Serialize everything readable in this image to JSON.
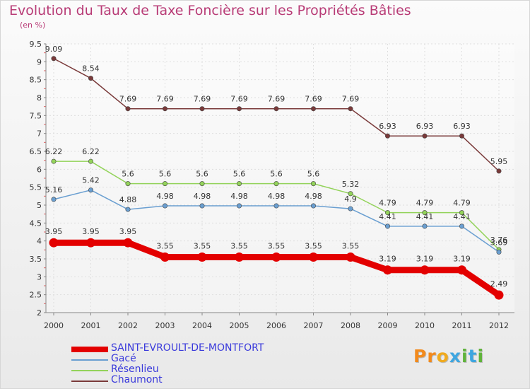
{
  "title": "Evolution du Taux de Taxe Foncière sur les Propriétés Bâties",
  "subtitle": "(en %)",
  "logo": {
    "text": "Proxiti",
    "letter_colors": [
      "#f28a1c",
      "#f28a1c",
      "#f0aa1e",
      "#3ea6e0",
      "#5fb33a",
      "#3ea6e0",
      "#5fb33a"
    ]
  },
  "chart_data": {
    "type": "line",
    "title": "Evolution du Taux de Taxe Foncière sur les Propriétés Bâties",
    "ylabel": "(en %)",
    "xlabel": "",
    "ylim": [
      2,
      9.5
    ],
    "yticks": [
      "2",
      "2.5",
      "3",
      "3.5",
      "4",
      "4.5",
      "5",
      "5.5",
      "6",
      "6.5",
      "7",
      "7.5",
      "8",
      "8.5",
      "9",
      "9.5"
    ],
    "grid": true,
    "legend_position": "bottom-left",
    "categories": [
      "2000",
      "2001",
      "2002",
      "2003",
      "2004",
      "2005",
      "2006",
      "2007",
      "2008",
      "2009",
      "2010",
      "2011",
      "2012"
    ],
    "series": [
      {
        "name": "SAINT-EVROULT-DE-MONTFORT",
        "color": "#e30000",
        "values": [
          3.95,
          3.95,
          3.95,
          3.55,
          3.55,
          3.55,
          3.55,
          3.55,
          3.55,
          3.19,
          3.19,
          3.19,
          2.49
        ],
        "labels": [
          "3.95",
          "3.95",
          "3.95",
          "3.55",
          "3.55",
          "3.55",
          "3.55",
          "3.55",
          "3.55",
          "3.19",
          "3.19",
          "3.19",
          "2.49"
        ]
      },
      {
        "name": "Gacé",
        "color": "#6a9fd1",
        "values": [
          5.16,
          5.42,
          4.88,
          4.98,
          4.98,
          4.98,
          4.98,
          4.98,
          4.9,
          4.41,
          4.41,
          4.41,
          3.69
        ],
        "labels": [
          "5.16",
          "5.42",
          "4.88",
          "4.98",
          "4.98",
          "4.98",
          "4.98",
          "4.98",
          "4.9",
          "4.41",
          "4.41",
          "4.41",
          "3.69"
        ]
      },
      {
        "name": "Résenlieu",
        "color": "#93d35a",
        "values": [
          6.22,
          6.22,
          5.6,
          5.6,
          5.6,
          5.6,
          5.6,
          5.6,
          5.32,
          4.79,
          4.79,
          4.79,
          3.76
        ],
        "labels": [
          "6.22",
          "6.22",
          "5.6",
          "5.6",
          "5.6",
          "5.6",
          "5.6",
          "5.6",
          "5.32",
          "4.79",
          "4.79",
          "4.79",
          "3.76"
        ]
      },
      {
        "name": "Chaumont",
        "color": "#7a3a3a",
        "values": [
          9.09,
          8.54,
          7.69,
          7.69,
          7.69,
          7.69,
          7.69,
          7.69,
          7.69,
          6.93,
          6.93,
          6.93,
          5.95
        ],
        "labels": [
          "9.09",
          "8.54",
          "7.69",
          "7.69",
          "7.69",
          "7.69",
          "7.69",
          "7.69",
          "7.69",
          "6.93",
          "6.93",
          "6.93",
          "5.95"
        ]
      }
    ]
  }
}
